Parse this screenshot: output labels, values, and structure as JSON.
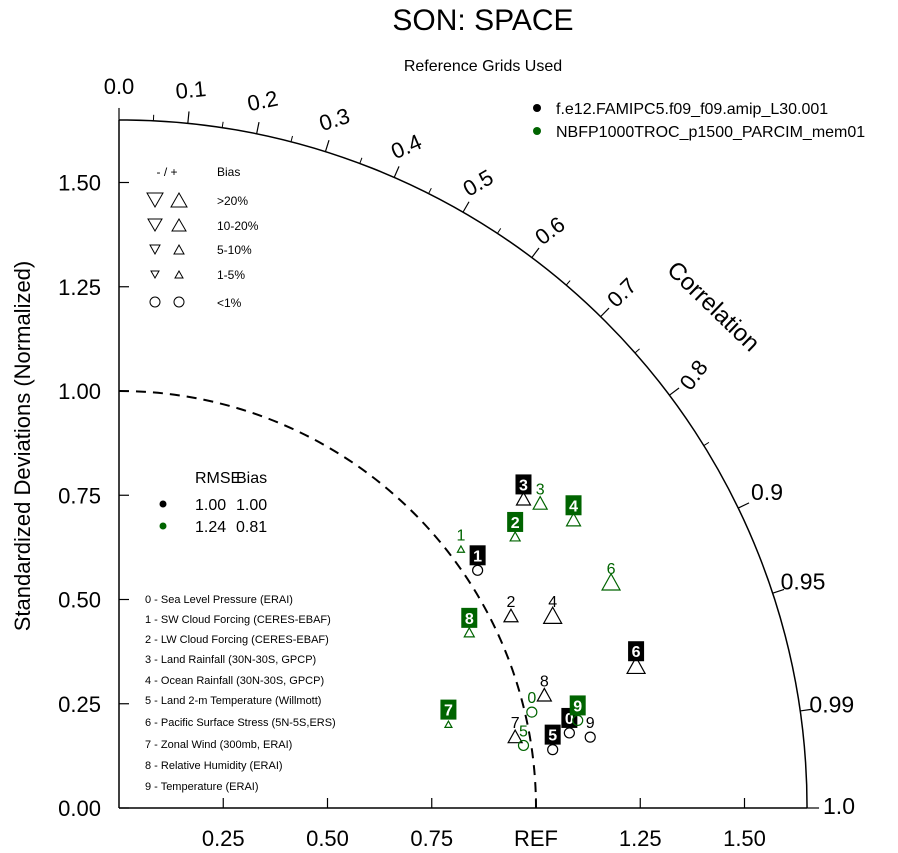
{
  "title": "SON: SPACE",
  "subtitle": "Reference Grids Used",
  "colors": {
    "case1": "#000000",
    "case2": "#006400"
  },
  "models": [
    {
      "name": "f.e12.FAMIPC5.f09_f09.amip_L30.001",
      "color": "#000000"
    },
    {
      "name": "NBFP1000TROC_p1500_PARCIM_mem01",
      "color": "#006400"
    }
  ],
  "bias_legend": {
    "header_sign": "- / +",
    "header_bias": "Bias",
    "rows": [
      {
        "label": ">20%",
        "marker": "triangle-large"
      },
      {
        "label": "10-20%",
        "marker": "triangle-medium"
      },
      {
        "label": "5-10%",
        "marker": "triangle-small"
      },
      {
        "label": "1-5%",
        "marker": "triangle-tiny"
      },
      {
        "label": "<1%",
        "marker": "circle"
      }
    ]
  },
  "summary": {
    "header_rmse": "RMSE",
    "header_bias": "Bias",
    "rows": [
      {
        "rmse": "1.00",
        "bias": "1.00",
        "color": "#000000"
      },
      {
        "rmse": "1.24",
        "bias": "0.81",
        "color": "#006400"
      }
    ]
  },
  "variables": [
    "0 - Sea Level Pressure (ERAI)",
    "1 - SW Cloud Forcing (CERES-EBAF)",
    "2 - LW Cloud Forcing (CERES-EBAF)",
    "3 - Land Rainfall (30N-30S, GPCP)",
    "4 - Ocean Rainfall (30N-30S, GPCP)",
    "5 - Land 2-m Temperature (Willmott)",
    "6 - Pacific Surface Stress (5N-5S,ERS)",
    "7 - Zonal Wind (300mb, ERAI)",
    "8 - Relative Humidity (ERAI)",
    "9 - Temperature (ERAI)"
  ],
  "chart_data": {
    "type": "scatter",
    "ylabel": "Standardized Deviations (Normalized)",
    "angular_label": "Correlation",
    "x_tick_labels": [
      "0.25",
      "0.50",
      "0.75",
      "REF",
      "1.25",
      "1.50"
    ],
    "x_ticks": [
      0.25,
      0.5,
      0.75,
      1.0,
      1.25,
      1.5
    ],
    "y_tick_labels": [
      "0.00",
      "0.25",
      "0.50",
      "0.75",
      "1.00",
      "1.25",
      "1.50"
    ],
    "y_ticks": [
      0,
      0.25,
      0.5,
      0.75,
      1.0,
      1.25,
      1.5
    ],
    "correlation_ticks": [
      "0.0",
      "0.1",
      "0.2",
      "0.3",
      "0.4",
      "0.5",
      "0.6",
      "0.7",
      "0.8",
      "0.9",
      "0.95",
      "0.99",
      "1.0"
    ],
    "correlation_values": [
      0.0,
      0.1,
      0.2,
      0.3,
      0.4,
      0.5,
      0.6,
      0.7,
      0.8,
      0.9,
      0.95,
      0.99,
      1.0
    ],
    "max_std": 1.65,
    "ref_std": 1.0,
    "series": [
      {
        "name": "f.e12.FAMIPC5.f09_f09.amip_L30.001",
        "color": "#000000",
        "points": [
          {
            "id": "0",
            "x": 1.08,
            "y": 0.18,
            "marker": "circle"
          },
          {
            "id": "1",
            "x": 0.86,
            "y": 0.57,
            "marker": "circle"
          },
          {
            "id": "2",
            "x": 0.94,
            "y": 0.46,
            "marker": "triangle-medium"
          },
          {
            "id": "3",
            "x": 0.97,
            "y": 0.74,
            "marker": "triangle-medium"
          },
          {
            "id": "4",
            "x": 1.04,
            "y": 0.46,
            "marker": "triangle-large"
          },
          {
            "id": "5",
            "x": 1.04,
            "y": 0.14,
            "marker": "circle"
          },
          {
            "id": "6",
            "x": 1.24,
            "y": 0.34,
            "marker": "triangle-large"
          },
          {
            "id": "7",
            "x": 0.95,
            "y": 0.17,
            "marker": "triangle-medium"
          },
          {
            "id": "8",
            "x": 1.02,
            "y": 0.27,
            "marker": "triangle-medium"
          },
          {
            "id": "9",
            "x": 1.13,
            "y": 0.17,
            "marker": "circle"
          }
        ]
      },
      {
        "name": "NBFP1000TROC_p1500_PARCIM_mem01",
        "color": "#006400",
        "points": [
          {
            "id": "0",
            "x": 0.99,
            "y": 0.23,
            "marker": "circle"
          },
          {
            "id": "1",
            "x": 0.82,
            "y": 0.62,
            "marker": "triangle-tiny"
          },
          {
            "id": "2",
            "x": 0.95,
            "y": 0.65,
            "marker": "triangle-small"
          },
          {
            "id": "3",
            "x": 1.01,
            "y": 0.73,
            "marker": "triangle-medium"
          },
          {
            "id": "4",
            "x": 1.09,
            "y": 0.69,
            "marker": "triangle-medium"
          },
          {
            "id": "5",
            "x": 0.97,
            "y": 0.15,
            "marker": "circle"
          },
          {
            "id": "6",
            "x": 1.18,
            "y": 0.54,
            "marker": "triangle-large"
          },
          {
            "id": "7",
            "x": 0.79,
            "y": 0.2,
            "marker": "triangle-tiny"
          },
          {
            "id": "8",
            "x": 0.84,
            "y": 0.42,
            "marker": "triangle-small"
          },
          {
            "id": "9",
            "x": 1.1,
            "y": 0.21,
            "marker": "circle"
          }
        ]
      }
    ],
    "label_styles": {
      "f.e12.FAMIPC5.f09_f09.amip_L30.001": {
        "boxed": [
          "0",
          "1",
          "3",
          "5",
          "6"
        ]
      },
      "NBFP1000TROC_p1500_PARCIM_mem01": {
        "boxed": [
          "2",
          "4",
          "7",
          "8",
          "9"
        ]
      }
    }
  }
}
